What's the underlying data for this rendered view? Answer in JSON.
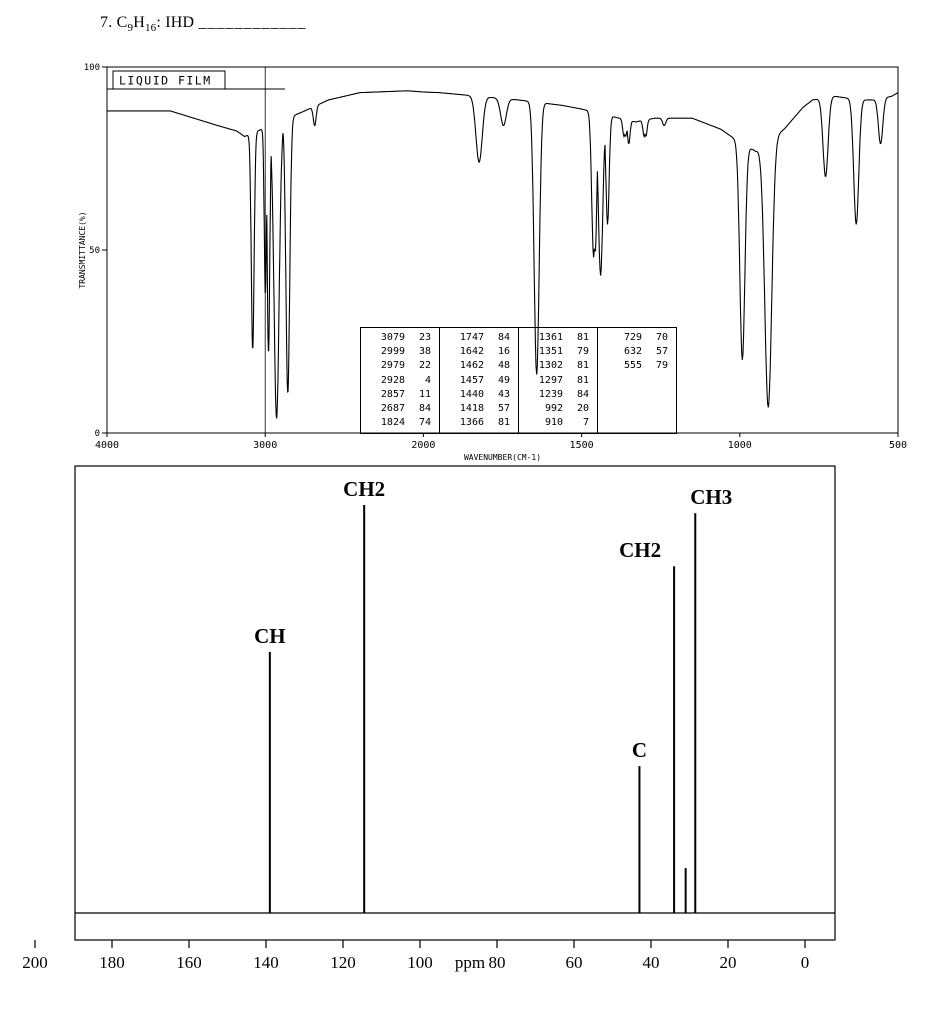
{
  "title": {
    "number": "7.",
    "formula": {
      "c": "C",
      "c_sub": "9",
      "h": "H",
      "h_sub": "16",
      "colon": ":"
    },
    "ihd_label": "IHD",
    "ihd_blank": "____________"
  },
  "chart_data": [
    {
      "type": "line",
      "name": "ir-spectrum",
      "sample_label": "LIQUID FILM",
      "xlabel": "WAVENUMBER(CM-1)",
      "ylabel": "TRANSMITTANCE(%)",
      "x_ticks": [
        4000,
        3000,
        2000,
        1500,
        1000,
        500
      ],
      "y_ticks": [
        0,
        50,
        100
      ],
      "ylim": [
        0,
        100
      ],
      "x_axis_note": "1000 per division above 2000, 500 per division below 2000",
      "gridline_x": 3000,
      "grid": false,
      "baseline_anchors": [
        [
          4000,
          88
        ],
        [
          3800,
          88
        ],
        [
          3600,
          88
        ],
        [
          3450,
          86
        ],
        [
          3300,
          84
        ],
        [
          3180,
          82.5
        ],
        [
          3130,
          81
        ],
        [
          2750,
          88
        ],
        [
          2600,
          91
        ],
        [
          2400,
          93
        ],
        [
          2100,
          93.5
        ],
        [
          1950,
          93
        ],
        [
          1700,
          91
        ],
        [
          1560,
          89.5
        ],
        [
          1500,
          88.5
        ],
        [
          1380,
          86
        ],
        [
          1330,
          85
        ],
        [
          1270,
          86
        ],
        [
          1150,
          86
        ],
        [
          1060,
          83
        ],
        [
          1010,
          80
        ],
        [
          950,
          77
        ],
        [
          860,
          83
        ],
        [
          800,
          89
        ],
        [
          770,
          91
        ],
        [
          700,
          92
        ],
        [
          660,
          91.5
        ],
        [
          600,
          91
        ],
        [
          580,
          91
        ],
        [
          520,
          92
        ],
        [
          500,
          93
        ]
      ],
      "peaks": [
        {
          "wavenumber": 3079,
          "transmittance": 23,
          "width": 9
        },
        {
          "wavenumber": 2999,
          "transmittance": 38,
          "width": 7
        },
        {
          "wavenumber": 2979,
          "transmittance": 22,
          "width": 8
        },
        {
          "wavenumber": 2928,
          "transmittance": 4,
          "width": 16
        },
        {
          "wavenumber": 2857,
          "transmittance": 11,
          "width": 12
        },
        {
          "wavenumber": 2687,
          "transmittance": 84,
          "width": 9
        },
        {
          "wavenumber": 1824,
          "transmittance": 74,
          "width": 10
        },
        {
          "wavenumber": 1747,
          "transmittance": 84,
          "width": 9
        },
        {
          "wavenumber": 1642,
          "transmittance": 16,
          "width": 8
        },
        {
          "wavenumber": 1462,
          "transmittance": 48,
          "width": 6
        },
        {
          "wavenumber": 1457,
          "transmittance": 49,
          "width": 5
        },
        {
          "wavenumber": 1440,
          "transmittance": 43,
          "width": 7
        },
        {
          "wavenumber": 1418,
          "transmittance": 57,
          "width": 5
        },
        {
          "wavenumber": 1366,
          "transmittance": 81,
          "width": 4
        },
        {
          "wavenumber": 1361,
          "transmittance": 81,
          "width": 4
        },
        {
          "wavenumber": 1351,
          "transmittance": 79,
          "width": 4
        },
        {
          "wavenumber": 1302,
          "transmittance": 81,
          "width": 4
        },
        {
          "wavenumber": 1297,
          "transmittance": 81,
          "width": 4
        },
        {
          "wavenumber": 1239,
          "transmittance": 84,
          "width": 5
        },
        {
          "wavenumber": 992,
          "transmittance": 20,
          "width": 8
        },
        {
          "wavenumber": 910,
          "transmittance": 7,
          "width": 11
        },
        {
          "wavenumber": 729,
          "transmittance": 70,
          "width": 8
        },
        {
          "wavenumber": 632,
          "transmittance": 57,
          "width": 8
        },
        {
          "wavenumber": 555,
          "transmittance": 79,
          "width": 7
        }
      ],
      "table_column_sizes": [
        7,
        7,
        7,
        3
      ]
    },
    {
      "type": "line",
      "name": "c13-nmr-spectrum",
      "xlabel": "ppm",
      "x_ticks": [
        200,
        180,
        160,
        140,
        120,
        100,
        80,
        60,
        40,
        20,
        0
      ],
      "xlim": [
        200,
        0
      ],
      "peaks": [
        {
          "ppm": 139,
          "intensity": 0.64,
          "label": "CH"
        },
        {
          "ppm": 114.5,
          "intensity": 1.0,
          "label": "CH2"
        },
        {
          "ppm": 43,
          "intensity": 0.36,
          "label": "C"
        },
        {
          "ppm": 34,
          "intensity": 0.85,
          "label": "CH2",
          "label_dx": -34
        },
        {
          "ppm": 31,
          "intensity": 0.11
        },
        {
          "ppm": 28.5,
          "intensity": 0.98,
          "label": "CH3",
          "label_dx": 16
        }
      ]
    }
  ]
}
